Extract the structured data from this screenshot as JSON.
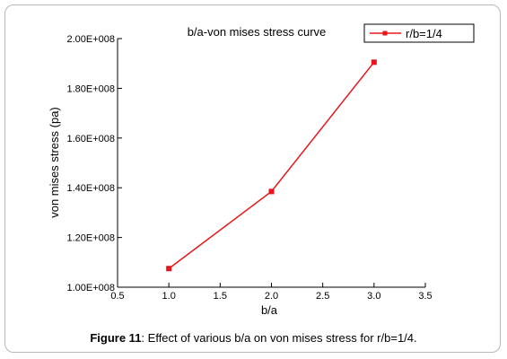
{
  "chart_data": {
    "type": "line",
    "title": "b/a-von mises stress curve",
    "xlabel": "b/a",
    "ylabel": "von mises stress (pa)",
    "xlim": [
      0.5,
      3.5
    ],
    "ylim": [
      100000000,
      200000000
    ],
    "x_ticks": [
      "0.5",
      "1.0",
      "1.5",
      "2.0",
      "2.5",
      "3.0",
      "3.5"
    ],
    "y_ticks": [
      "1.00E+008",
      "1.20E+008",
      "1.40E+008",
      "1.60E+008",
      "1.80E+008",
      "2.00E+008"
    ],
    "grid": false,
    "legend_position": "top-right",
    "series": [
      {
        "name": "r/b=1/4",
        "color": "#e8161b",
        "marker": "square",
        "x": [
          1.0,
          2.0,
          3.0
        ],
        "y": [
          107500000,
          138500000,
          190500000
        ]
      }
    ]
  },
  "caption": {
    "label": "Figure 11",
    "text": ": Effect of various b/a on von mises stress for r/b=1/4."
  }
}
